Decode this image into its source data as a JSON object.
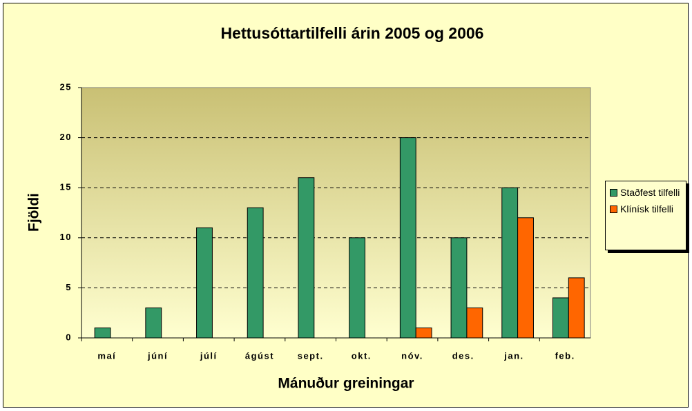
{
  "chart_data": {
    "type": "bar",
    "title": "Hettusóttartilfelli árin 2005 og 2006",
    "xlabel": "Mánuður greiningar",
    "ylabel": "Fjöldi",
    "categories": [
      "maí",
      "júní",
      "júlí",
      "ágúst",
      "sept.",
      "okt.",
      "nóv.",
      "des.",
      "jan.",
      "feb."
    ],
    "series": [
      {
        "name": "Staðfest tilfelli",
        "color": "#339966",
        "values": [
          1,
          3,
          11,
          13,
          16,
          10,
          20,
          10,
          15,
          4
        ]
      },
      {
        "name": "Klínísk tilfelli",
        "color": "#ff6600",
        "values": [
          null,
          null,
          null,
          null,
          null,
          null,
          1,
          3,
          12,
          6
        ]
      }
    ],
    "ylim": [
      0,
      25
    ],
    "yticks": [
      0,
      5,
      10,
      15,
      20,
      25
    ],
    "grid": true,
    "legend": "right"
  }
}
